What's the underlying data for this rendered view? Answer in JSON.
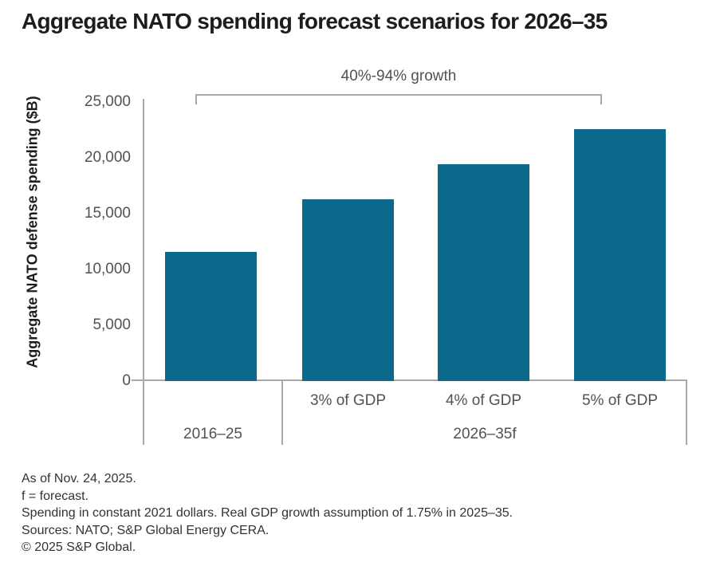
{
  "title": "Aggregate NATO spending forecast scenarios for 2026–35",
  "colors": {
    "bar": "#0b6a8b",
    "axis_line": "#a7a8aa",
    "tick_text": "#515256",
    "title_text": "#1d1d1f",
    "footer_text": "#333335"
  },
  "chart_data": {
    "type": "bar",
    "title": "Aggregate NATO spending forecast scenarios for 2026–35",
    "ylabel": "Aggregate NATO defense spending ($B)",
    "xlabel": "",
    "ylim": [
      0,
      25000
    ],
    "yticks": [
      25000,
      20000,
      15000,
      10000,
      5000,
      0
    ],
    "ytick_labels": [
      "25,000",
      "20,000",
      "15,000",
      "10,000",
      "5,000",
      "0"
    ],
    "grid": false,
    "legend": false,
    "bar_color": "#0b6a8b",
    "categories": [
      "2016–25",
      "3% of GDP",
      "4% of GDP",
      "5% of GDP"
    ],
    "values": [
      11600,
      16250,
      19400,
      22600
    ],
    "bar_sublabels": [
      "",
      "3% of GDP",
      "4% of GDP",
      "5% of GDP"
    ],
    "group_labels": [
      "2016–25",
      "2026–35f"
    ],
    "annotation": "40%-94% growth"
  },
  "footer": {
    "lines": [
      "As of Nov. 24, 2025.",
      "f = forecast.",
      "Spending in constant 2021 dollars. Real GDP growth assumption of 1.75% in 2025–35.",
      "Sources: NATO; S&P Global Energy CERA.",
      "© 2025 S&P Global."
    ]
  }
}
